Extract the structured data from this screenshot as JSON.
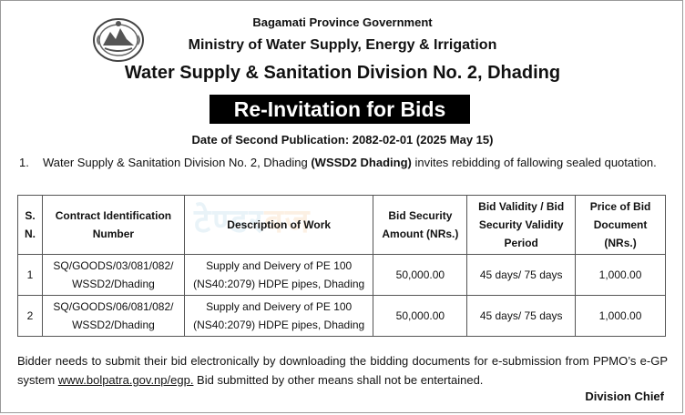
{
  "header": {
    "province": "Bagamati Province Government",
    "ministry": "Ministry of Water Supply, Energy & Irrigation",
    "division": "Water Supply & Sanitation Division No. 2, Dhading"
  },
  "banner": {
    "title": "Re-Invitation for Bids"
  },
  "publication": {
    "date_line": "Date of Second Publication: 2082-02-01 (2025 May 15)"
  },
  "intro": {
    "number": "1.",
    "text_before": "Water Supply & Sanitation Division No. 2, Dhading ",
    "bold": "(WSSD2 Dhading)",
    "text_after": " invites rebidding of fallowing sealed quotation."
  },
  "table": {
    "headers": {
      "sn": "S. N.",
      "contract_id": "Contract Identification Number",
      "description": "Description of Work",
      "security": "Bid Security Amount (NRs.)",
      "validity": "Bid Validity / Bid Security Validity Period",
      "price": "Price of Bid Document (NRs.)"
    },
    "rows": [
      {
        "sn": "1",
        "contract_id": "SQ/GOODS/03/081/082/ WSSD2/Dhading",
        "description": "Supply and Deivery of PE 100 (NS40:2079) HDPE pipes, Dhading",
        "security": "50,000.00",
        "validity": "45 days/ 75 days",
        "price": "1,000.00"
      },
      {
        "sn": "2",
        "contract_id": "SQ/GOODS/06/081/082/ WSSD2/Dhading",
        "description": "Supply and Deivery of PE 100 (NS40:2079) HDPE pipes, Dhading",
        "security": "50,000.00",
        "validity": "45 days/ 75 days",
        "price": "1,000.00"
      }
    ]
  },
  "footer": {
    "text_before": "Bidder needs to submit their bid electronically by downloading the bidding documents for e-submission from PPMO’s e-GP system ",
    "link": "www.bolpatra.gov.np/egp.",
    "text_after": " Bid submitted by other means shall not be entertained.",
    "signoff": "Division Chief"
  },
  "watermark": {
    "text_a": "टेण्डर",
    "text_b": "बज"
  },
  "colors": {
    "banner_bg": "#000000",
    "banner_text": "#ffffff",
    "watermark_blue": "#6fb3d6",
    "watermark_orange": "#f0a14a"
  }
}
